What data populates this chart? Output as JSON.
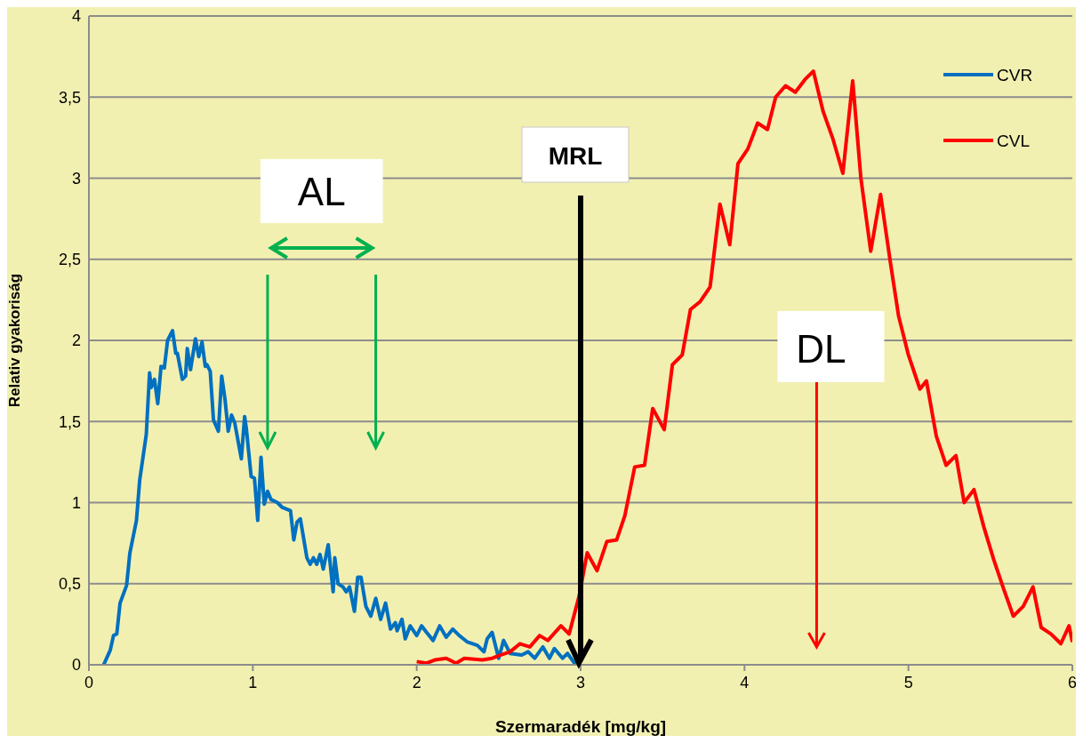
{
  "chart_data": {
    "type": "line",
    "xlabel": "Szermaradék  [mg/kg]",
    "ylabel": "Relativ gyakoriság",
    "xlim": [
      0,
      6
    ],
    "xticks": [
      0,
      1,
      2,
      3,
      4,
      5,
      6
    ],
    "ylim": [
      0,
      4
    ],
    "yticks": [
      0,
      {
        "value": 0.5,
        "label": "0,5"
      },
      1,
      {
        "value": 1.5,
        "label": "1,5"
      },
      2,
      {
        "value": 2.5,
        "label": "2,5"
      },
      3,
      {
        "value": 3.5,
        "label": "3,5"
      },
      4
    ],
    "grid": "y",
    "legend": "top right",
    "marker": "none",
    "line_style": "solid",
    "series": [
      {
        "name": "CVR",
        "color": "#0070c0",
        "x": [
          0.09,
          0.13,
          0.15,
          0.17,
          0.19,
          0.23,
          0.25,
          0.29,
          0.31,
          0.35,
          0.37,
          0.38,
          0.4,
          0.42,
          0.44,
          0.46,
          0.48,
          0.51,
          0.53,
          0.54,
          0.57,
          0.59,
          0.6,
          0.62,
          0.65,
          0.67,
          0.69,
          0.71,
          0.72,
          0.74,
          0.76,
          0.79,
          0.81,
          0.83,
          0.85,
          0.87,
          0.89,
          0.93,
          0.95,
          0.96,
          0.99,
          1.01,
          1.03,
          1.05,
          1.07,
          1.09,
          1.11,
          1.15,
          1.18,
          1.23,
          1.25,
          1.27,
          1.29,
          1.33,
          1.35,
          1.37,
          1.39,
          1.41,
          1.43,
          1.46,
          1.49,
          1.5,
          1.52,
          1.55,
          1.57,
          1.59,
          1.62,
          1.64,
          1.66,
          1.69,
          1.72,
          1.75,
          1.78,
          1.81,
          1.84,
          1.87,
          1.88,
          1.91,
          1.93,
          1.96,
          2.0,
          2.03,
          2.06,
          2.1,
          2.14,
          2.18,
          2.22,
          2.26,
          2.31,
          2.37,
          2.41,
          2.43,
          2.46,
          2.5,
          2.53,
          2.57,
          2.64,
          2.68,
          2.72,
          2.77,
          2.81,
          2.84,
          2.89,
          2.92,
          2.97
        ],
        "values": [
          0,
          0.09,
          0.18,
          0.19,
          0.38,
          0.49,
          0.69,
          0.89,
          1.14,
          1.42,
          1.8,
          1.71,
          1.76,
          1.61,
          1.84,
          1.83,
          2.0,
          2.06,
          1.92,
          1.92,
          1.76,
          1.78,
          1.95,
          1.82,
          2.01,
          1.9,
          1.99,
          1.84,
          1.85,
          1.81,
          1.51,
          1.44,
          1.78,
          1.64,
          1.44,
          1.54,
          1.49,
          1.27,
          1.53,
          1.46,
          1.16,
          1.15,
          0.89,
          1.28,
          0.99,
          1.07,
          1.02,
          1.0,
          0.97,
          0.95,
          0.77,
          0.88,
          0.9,
          0.66,
          0.62,
          0.66,
          0.62,
          0.68,
          0.59,
          0.74,
          0.45,
          0.66,
          0.5,
          0.48,
          0.45,
          0.48,
          0.33,
          0.54,
          0.54,
          0.36,
          0.3,
          0.41,
          0.28,
          0.38,
          0.22,
          0.26,
          0.21,
          0.28,
          0.16,
          0.24,
          0.18,
          0.24,
          0.2,
          0.15,
          0.24,
          0.17,
          0.22,
          0.18,
          0.14,
          0.12,
          0.08,
          0.16,
          0.2,
          0.04,
          0.15,
          0.07,
          0.06,
          0.08,
          0.04,
          0.11,
          0.04,
          0.1,
          0.04,
          0.07,
          0.0
        ]
      },
      {
        "name": "CVL",
        "color": "#ff0000",
        "x": [
          2.0,
          2.06,
          2.11,
          2.18,
          2.24,
          2.29,
          2.4,
          2.46,
          2.51,
          2.57,
          2.63,
          2.69,
          2.75,
          2.8,
          2.88,
          2.93,
          2.99,
          3.04,
          3.1,
          3.16,
          3.22,
          3.27,
          3.33,
          3.39,
          3.44,
          3.51,
          3.56,
          3.62,
          3.67,
          3.73,
          3.79,
          3.85,
          3.91,
          3.96,
          4.02,
          4.08,
          4.14,
          4.19,
          4.25,
          4.31,
          4.37,
          4.42,
          4.48,
          4.54,
          4.6,
          4.66,
          4.71,
          4.77,
          4.83,
          4.89,
          4.94,
          5.0,
          5.07,
          5.11,
          5.17,
          5.23,
          5.29,
          5.34,
          5.4,
          5.46,
          5.52,
          5.58,
          5.64,
          5.7,
          5.76,
          5.81,
          5.87,
          5.93,
          5.98,
          6.0
        ],
        "values": [
          0.02,
          0.01,
          0.03,
          0.04,
          0.01,
          0.04,
          0.03,
          0.04,
          0.06,
          0.08,
          0.13,
          0.11,
          0.18,
          0.15,
          0.24,
          0.19,
          0.42,
          0.69,
          0.58,
          0.76,
          0.77,
          0.92,
          1.22,
          1.23,
          1.58,
          1.45,
          1.85,
          1.91,
          2.19,
          2.24,
          2.33,
          2.84,
          2.59,
          3.09,
          3.18,
          3.34,
          3.3,
          3.5,
          3.57,
          3.53,
          3.61,
          3.66,
          3.41,
          3.24,
          3.03,
          3.6,
          3.0,
          2.55,
          2.9,
          2.48,
          2.15,
          1.91,
          1.7,
          1.75,
          1.41,
          1.23,
          1.29,
          1.0,
          1.08,
          0.85,
          0.65,
          0.47,
          0.3,
          0.36,
          0.48,
          0.23,
          0.19,
          0.13,
          0.24,
          0.14
        ]
      }
    ],
    "annotations": [
      "AL",
      "MRL",
      "DL"
    ]
  }
}
